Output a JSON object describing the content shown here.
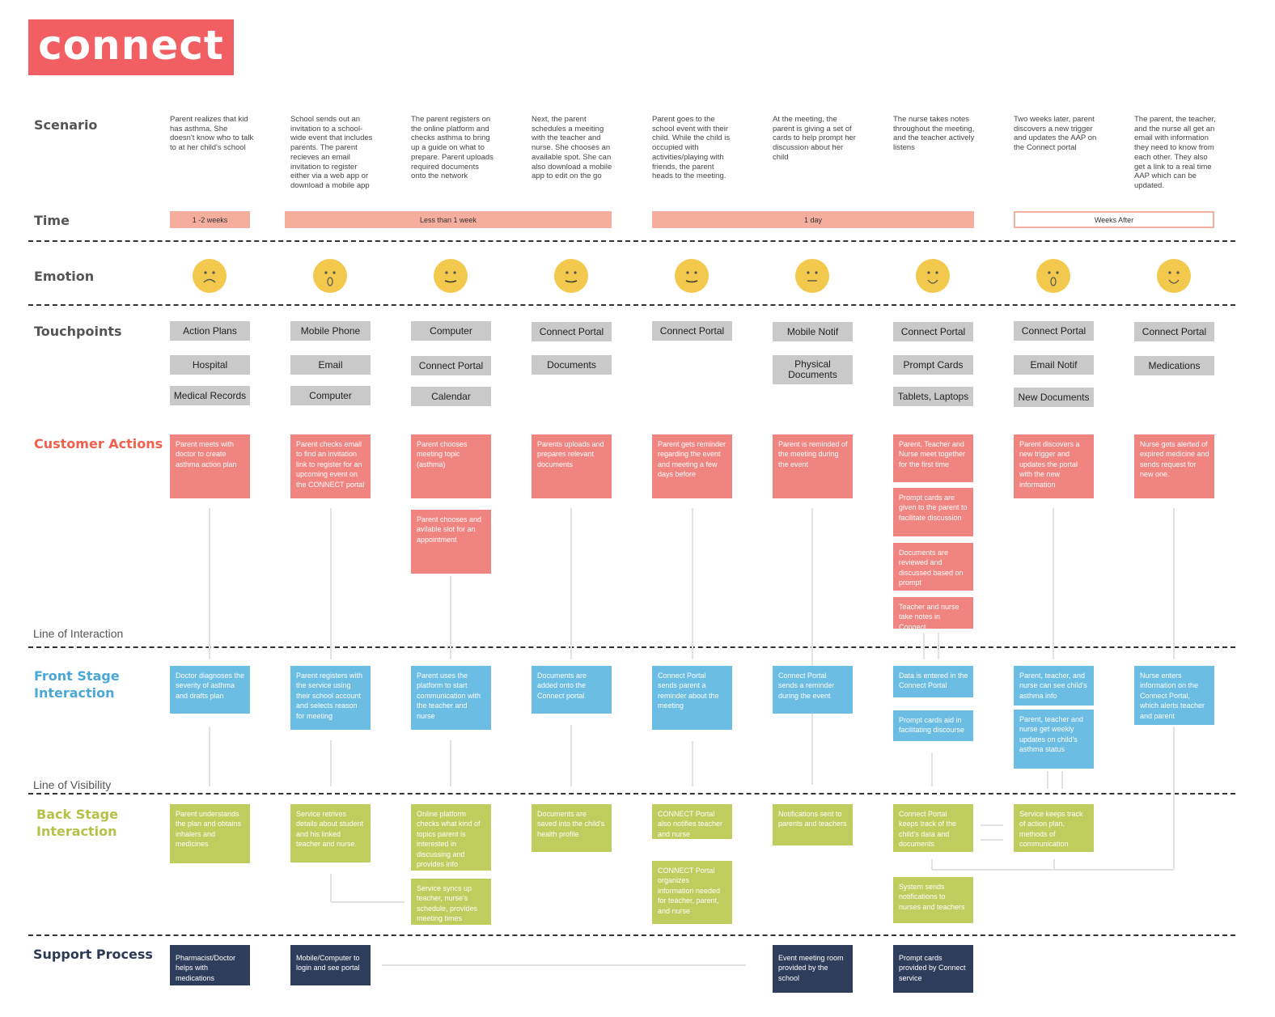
{
  "logo": "connect",
  "row_labels": {
    "scenario": "Scenario",
    "time": "Time",
    "emotion": "Emotion",
    "touchpoints": "Touchpoints",
    "customer_actions": "Customer Actions",
    "line_of_interaction": "Line of Interaction",
    "front_stage_1": "Front Stage",
    "front_stage_2": "Interaction",
    "line_of_visibility": "Line of Visibility",
    "back_stage_1": "Back Stage",
    "back_stage_2": "Interaction",
    "support_process": "Support Process"
  },
  "colors": {
    "brand": "#f25f63",
    "customer_actions": "#f08480",
    "front_stage": "#6bbde3",
    "back_stage": "#bfcc5e",
    "support": "#2f3d5c",
    "time_bar": "#f5ad9d",
    "face": "#f2c94c",
    "touchpoint": "#c9c9c9"
  },
  "time_bars": [
    {
      "label": "1 -2 weeks",
      "style": "filled"
    },
    {
      "label": "Less than 1 week",
      "style": "filled"
    },
    {
      "label": "1 day",
      "style": "filled"
    },
    {
      "label": "Weeks After",
      "style": "outline"
    }
  ],
  "columns": [
    {
      "scenario": "Parent realizes that kid has asthma. She doesn't know who to talk to at her child's school",
      "emotion": "sad",
      "touchpoints": [
        "Action Plans",
        "Hospital",
        "Medical Records"
      ],
      "customer_actions": [
        "Parent meets with doctor to create asthma action plan"
      ],
      "front_stage": [
        "Doctor diagnoses the severity of asthma and drafts plan"
      ],
      "back_stage": [
        "Parent understands the plan and obtains inhalers and medicines"
      ],
      "support": [
        "Pharmacist/Doctor helps with medications"
      ]
    },
    {
      "scenario": "School sends out an invitation to a school-wide event that includes parents. The parent recieves an email invitation to register either via a web app or download a mobile app",
      "emotion": "surprised",
      "touchpoints": [
        "Mobile Phone",
        "Email",
        "Computer"
      ],
      "customer_actions": [
        "Parent checks email to find an invitation link to register for an upcoming event on the CONNECT portal"
      ],
      "front_stage": [
        "Parent registers with the service using their school account and selects reason for meeting"
      ],
      "back_stage": [
        "Service retrives details about student and his linked teacher and nurse."
      ],
      "support": [
        "Mobile/Computer to login and see portal"
      ]
    },
    {
      "scenario": "The parent registers on the online platform and checks asthma to bring up a guide on what to prepare. Parent uploads required documents onto the network",
      "emotion": "slight-smile",
      "touchpoints": [
        "Computer",
        "Connect Portal",
        "Calendar"
      ],
      "customer_actions": [
        "Parent chooses meeting topic (asthma)",
        "Parent chooses and avilable slot for an appointment"
      ],
      "front_stage": [
        "Parent uses the platform to start communication with the teacher and nurse"
      ],
      "back_stage": [
        "Online platform checks what kind of topics parent is interested in discussing and provides info",
        "Service syncs up teacher, nurse's schedule, provides meeting times"
      ],
      "support": []
    },
    {
      "scenario": "Next, the parent schedules a meeiting with the teacher and nurse. She chooses an available spot. She can also download a mobile app to edit on the go",
      "emotion": "slight-smile",
      "touchpoints": [
        "Connect Portal",
        "Documents"
      ],
      "customer_actions": [
        "Parents uploads and prepares relevant documents"
      ],
      "front_stage": [
        "Documents are added onto the Connect portal"
      ],
      "back_stage": [
        "Documents are saved into the child's health profile"
      ],
      "support": []
    },
    {
      "scenario": "Parent goes to the school event with their child. While the child is occupied with activities/playing with friends, the parent heads to the meeting.",
      "emotion": "slight-smile",
      "touchpoints": [
        "Connect Portal"
      ],
      "customer_actions": [
        "Parent gets reminder regarding the event and meeting a few days before"
      ],
      "front_stage": [
        "Connect Portal sends parent a reminder about the meeting"
      ],
      "back_stage": [
        "CONNECT Portal also notifies teacher and nurse",
        "CONNECT Portal organizes information needed for teacher, parent, and nurse"
      ],
      "support": []
    },
    {
      "scenario": "At the meeting, the parent is giving a set of cards to help prompt her discussion about her child",
      "emotion": "neutral",
      "touchpoints": [
        "Mobile Notif",
        "Physical Documents"
      ],
      "customer_actions": [
        "Parent is reminded of the meeting during the event"
      ],
      "front_stage": [
        "Connect Portal sends a reminder during the event"
      ],
      "back_stage": [
        "Notifications sent to parents and teachers"
      ],
      "support": [
        "Event meeting room provided by the school"
      ]
    },
    {
      "scenario": "The nurse takes notes throughout the meeting, and the teacher actively listens",
      "emotion": "smile",
      "touchpoints": [
        "Connect Portal",
        "Prompt Cards",
        "Tablets, Laptops"
      ],
      "customer_actions": [
        "Parent, Teacher and Nurse meet together for the first time",
        "Prompt cards are given to the parent to facilitate discussion",
        "Documents are reviewed and discussed based on prompt",
        "Teacher and nurse take notes in Connect"
      ],
      "front_stage": [
        "Data is entered in the Connect Portal",
        "Prompt cards aid in facilitating discourse"
      ],
      "back_stage": [
        "Connect Portal keeps track of the child's data and documents",
        "System sends notifications to nurses and teachers"
      ],
      "support": [
        "Prompt cards provided by Connect service"
      ]
    },
    {
      "scenario": "Two weeks later, parent discovers a new trigger and updates the AAP on the Connect portal",
      "emotion": "surprised",
      "touchpoints": [
        "Connect Portal",
        "Email Notif",
        "New Documents"
      ],
      "customer_actions": [
        "Parent discovers a new trigger and updates the portal with the new information"
      ],
      "front_stage": [
        "Parent, teacher, and nurse can see child's asthma info",
        "Parent, teacher and nurse get weekly updates on child's asthma status"
      ],
      "back_stage": [
        "Service keeps track of action plan, methods of communication"
      ],
      "support": []
    },
    {
      "scenario": "The parent, the teacher, and the nurse all get an email with information they need to know from each other. They also get a link to a real time AAP which can be updated.",
      "emotion": "smile",
      "touchpoints": [
        "Connect Portal",
        "Medications"
      ],
      "customer_actions": [
        "Nurse gets alerted of expired medicine and sends request for new one."
      ],
      "front_stage": [
        "Nurse enters information on the Connect Portal, which alerts teacher and parent"
      ],
      "back_stage": [],
      "support": []
    }
  ]
}
